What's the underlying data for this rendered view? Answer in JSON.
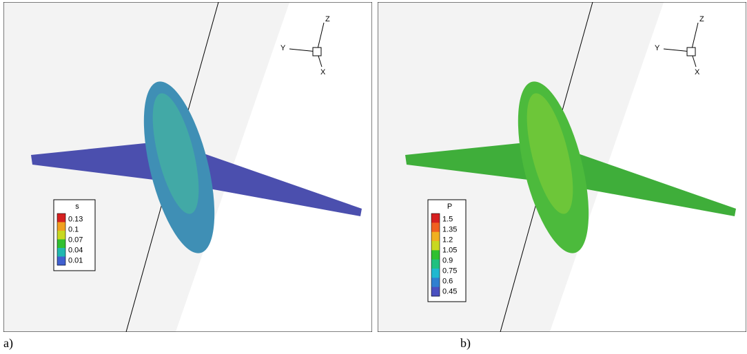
{
  "panels": [
    {
      "label": "a)",
      "axes": {
        "z": "Z",
        "y": "Y",
        "x": "X"
      },
      "legend": {
        "title": "s",
        "ticks": [
          "0.13",
          "0.1",
          "0.07",
          "0.04",
          "0.01"
        ]
      }
    },
    {
      "label": "b)",
      "axes": {
        "z": "Z",
        "y": "Y",
        "x": "X"
      },
      "legend": {
        "title": "P",
        "ticks": [
          "1.5",
          "1.35",
          "1.2",
          "1.05",
          "0.9",
          "0.75",
          "0.6",
          "0.45"
        ]
      }
    }
  ]
}
